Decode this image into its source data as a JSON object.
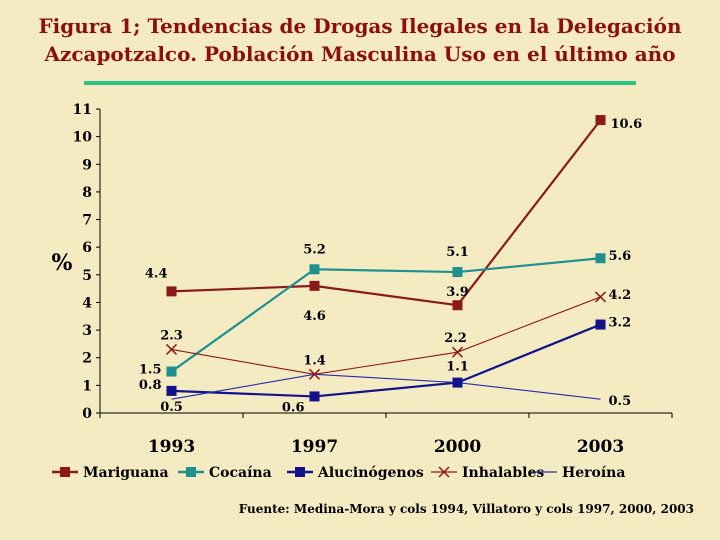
{
  "title_line1": "Figura 1; Tendencias de Drogas Ilegales en  la Delegación",
  "title_line2": "Azcapotzalco. Población Masculina Uso en el último año",
  "source": "Fuente: Medina-Mora y cols 1994, Villatoro y cols 1997, 2000, 2003",
  "chart_data": {
    "type": "line",
    "title": "Figura 1; Tendencias de Drogas Ilegales en  la Delegación Azcapotzalco. Población Masculina Uso en el último año",
    "ylabel": "%",
    "xlabel": "",
    "categories": [
      "1993",
      "1997",
      "2000",
      "2003"
    ],
    "ylim": [
      0,
      11
    ],
    "yticks": [
      "0",
      "1",
      "2",
      "3",
      "4",
      "5",
      "6",
      "7",
      "8",
      "9",
      "10",
      "11"
    ],
    "grid": false,
    "legend": "bottom",
    "series": [
      {
        "name": "Mariguana",
        "values": [
          4.4,
          4.6,
          3.9,
          10.6
        ],
        "labels": [
          "4.4",
          "4.6",
          "3.9",
          "10.6"
        ],
        "color": "#8b1a1a",
        "marker": "square"
      },
      {
        "name": "Cocaína",
        "values": [
          1.5,
          5.2,
          5.1,
          5.6
        ],
        "labels": [
          "1.5",
          "5.2",
          "5.1",
          "5.6"
        ],
        "color": "#1e9090",
        "marker": "square"
      },
      {
        "name": "Alucinógenos",
        "values": [
          0.8,
          0.6,
          1.1,
          3.2
        ],
        "labels": [
          "0.8",
          "0.6",
          "1.1",
          "3.2"
        ],
        "color": "#12128a",
        "marker": "square"
      },
      {
        "name": "Inhalables",
        "values": [
          2.3,
          1.4,
          2.2,
          4.2
        ],
        "labels": [
          "2.3",
          "1.4",
          "2.2",
          "4.2"
        ],
        "color": "#8b1a1a",
        "marker": "x"
      },
      {
        "name": "Heroína",
        "values": [
          0.5,
          1.4,
          1.1,
          0.5
        ],
        "labels": [
          "0.5",
          "",
          "",
          "0.5"
        ],
        "color": "#2a2aa8",
        "marker": "none"
      }
    ]
  }
}
